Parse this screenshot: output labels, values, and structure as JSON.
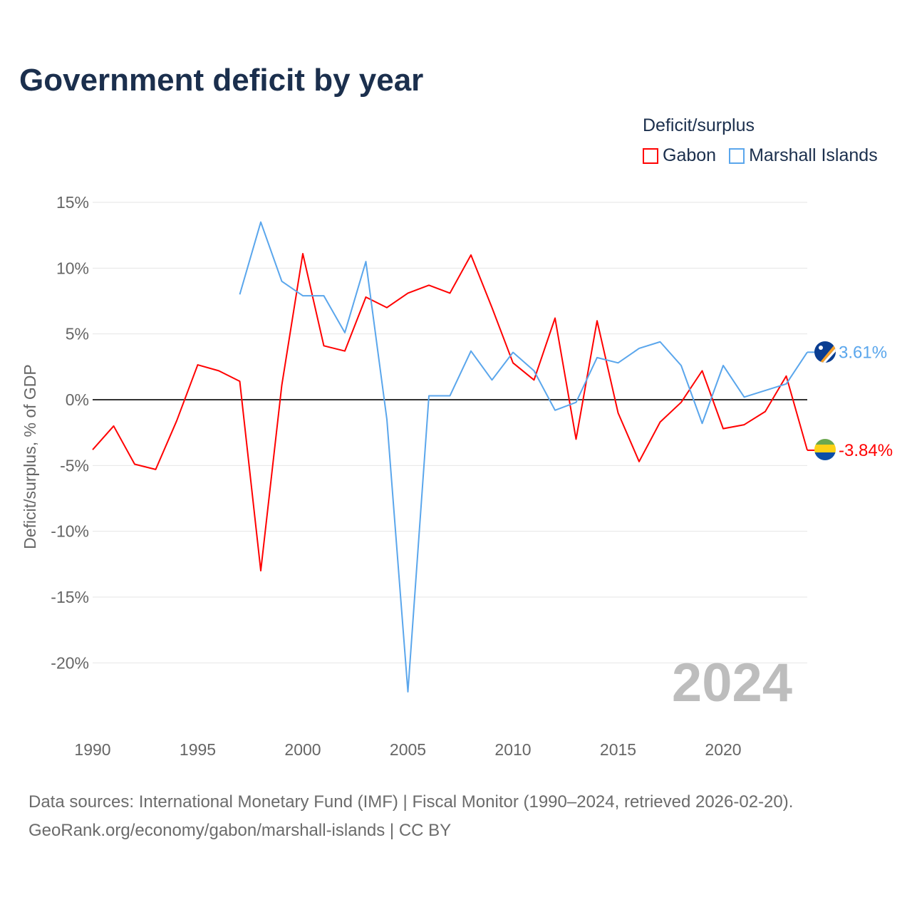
{
  "title": "Government deficit by year",
  "legend": {
    "title": "Deficit/surplus",
    "items": [
      {
        "name": "Gabon",
        "color": "#ff0000"
      },
      {
        "name": "Marshall Islands",
        "color": "#5aa6ec"
      }
    ]
  },
  "footer": {
    "sources": "Data sources: International Monetary Fund (IMF) | Fiscal Monitor (1990–2024, retrieved 2026-02-20).",
    "credit": "GeoRank.org/economy/gabon/marshall-islands | CC BY"
  },
  "chart_data": {
    "type": "line",
    "title": "Government deficit by year",
    "xlabel": "",
    "ylabel": "Deficit/surplus, % of GDP",
    "xlim": [
      1990,
      2024
    ],
    "ylim": [
      -25,
      15
    ],
    "xticks": [
      1990,
      1995,
      2000,
      2005,
      2010,
      2015,
      2020
    ],
    "xtick_labels": [
      "1990",
      "1995",
      "2000",
      "2005",
      "2010",
      "2015",
      "2020"
    ],
    "yticks": [
      15,
      10,
      5,
      0,
      -5,
      -10,
      -15,
      -20
    ],
    "ytick_labels": [
      "15%",
      "10%",
      "5%",
      "0%",
      "-5%",
      "-10%",
      "-15%",
      "-20%"
    ],
    "grid": true,
    "legend_position": "top-right",
    "year_watermark": "2024",
    "series": [
      {
        "name": "Gabon",
        "color": "#ff0000",
        "end_label": "-3.84%",
        "x": [
          1990,
          1991,
          1992,
          1993,
          1994,
          1995,
          1996,
          1997,
          1998,
          1999,
          2000,
          2001,
          2002,
          2003,
          2004,
          2005,
          2006,
          2007,
          2008,
          2009,
          2010,
          2011,
          2012,
          2013,
          2014,
          2015,
          2016,
          2017,
          2018,
          2019,
          2020,
          2021,
          2022,
          2023,
          2024
        ],
        "values": [
          -3.8,
          -2.0,
          -4.9,
          -5.3,
          -1.6,
          2.65,
          2.2,
          1.4,
          -13.0,
          1.1,
          11.1,
          4.1,
          3.7,
          7.8,
          7.0,
          8.1,
          8.7,
          8.1,
          11.0,
          7.0,
          2.8,
          1.5,
          6.2,
          -3.0,
          6.0,
          -1.0,
          -4.7,
          -1.7,
          -0.2,
          2.2,
          -2.2,
          -1.9,
          -0.9,
          1.8,
          -3.84
        ]
      },
      {
        "name": "Marshall Islands",
        "color": "#5aa6ec",
        "end_label": "3.61%",
        "x": [
          1997,
          1998,
          1999,
          2000,
          2001,
          2002,
          2003,
          2004,
          2005,
          2006,
          2007,
          2008,
          2009,
          2010,
          2011,
          2012,
          2013,
          2014,
          2015,
          2016,
          2017,
          2018,
          2019,
          2020,
          2021,
          2022,
          2023,
          2024
        ],
        "values": [
          8.0,
          13.5,
          9.0,
          7.9,
          7.9,
          5.1,
          10.5,
          -1.5,
          -22.2,
          0.3,
          0.3,
          3.7,
          1.5,
          3.6,
          2.2,
          -0.8,
          -0.2,
          3.2,
          2.8,
          3.9,
          4.4,
          2.6,
          -1.8,
          2.6,
          0.2,
          0.7,
          1.2,
          3.61
        ]
      }
    ]
  }
}
